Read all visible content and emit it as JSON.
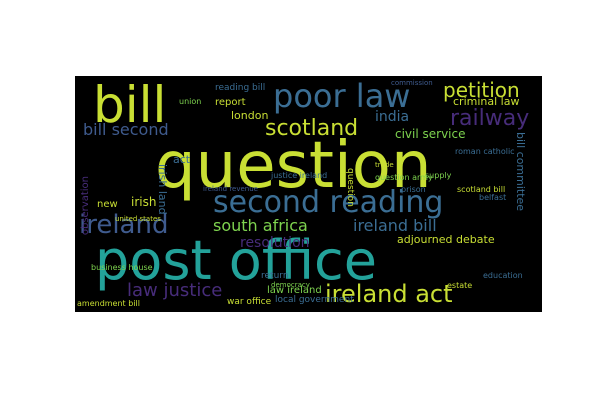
{
  "palette": {
    "background": "#000000",
    "page": "#ffffff",
    "yellow_green": "#c9df34",
    "light_green": "#7ed34f",
    "teal": "#23a29a",
    "blue": "#3b6e94",
    "slate": "#3f5b8e",
    "purple": "#472c7a",
    "dark_purple": "#3b1c62"
  },
  "words": {
    "question": "question",
    "post_office": "post office",
    "bill": "bill",
    "poor_law": "poor law",
    "second_reading": "second reading",
    "ireland": "ireland",
    "ireland_act": "ireland act",
    "scotland": "scotland",
    "bill_second": "bill second",
    "railway": "railway",
    "petition": "petition",
    "south_africa": "south africa",
    "ireland_bill": "ireland bill",
    "law_justice": "law justice",
    "resolution": "resolution",
    "criminal_law": "criminal law",
    "india": "india",
    "civil_service": "civil service",
    "adjourned_debate": "adjourned debate",
    "irish": "irish",
    "irish_land": "irish land",
    "new": "new",
    "london": "london",
    "report": "report",
    "reading_bill": "reading bill",
    "law_ireland": "law ireland",
    "local_government": "local government",
    "war_office": "war office",
    "amendment_bill": "amendment bill",
    "business_house": "business house",
    "bill_committee": "bill committee",
    "return": "return",
    "act": "act",
    "scotland_bill": "scotland bill",
    "estate": "estate",
    "united_states": "united states",
    "justice_ireland": "justice ireland",
    "observation": "observation",
    "union": "union",
    "democracy": "democracy",
    "education": "education",
    "supply": "supply",
    "question_army": "question army",
    "belfast": "belfast",
    "ireland_revenue": "ireland revenue",
    "commission": "commission",
    "roman_catholic": "roman catholic",
    "prison": "prison",
    "trade": "trade",
    "question_2": "question"
  }
}
